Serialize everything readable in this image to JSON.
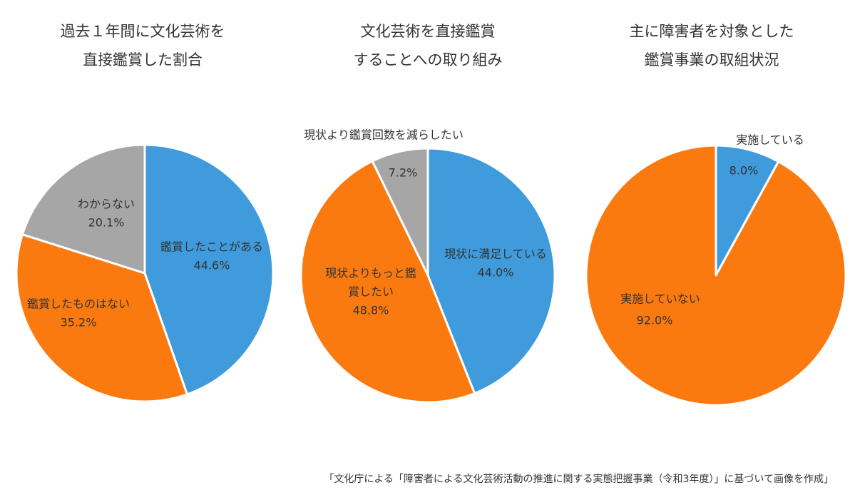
{
  "colors": {
    "blue": "#3f9bdb",
    "orange": "#fb7a10",
    "gray": "#a6a6a6",
    "outline": "#ffffff",
    "label": "#333333"
  },
  "chart_data": [
    {
      "type": "pie",
      "title_lines": [
        "過去１年間に文化芸術を",
        "直接鑑賞した割合"
      ],
      "slices": [
        {
          "label": "鑑賞したことがある",
          "value": 44.6,
          "value_label": "44.6%",
          "color": "#3f9bdb"
        },
        {
          "label": "鑑賞したものはない",
          "value": 35.2,
          "value_label": "35.2%",
          "color": "#fb7a10"
        },
        {
          "label": "わからない",
          "value": 20.1,
          "value_label": "20.1%",
          "color": "#a6a6a6"
        }
      ]
    },
    {
      "type": "pie",
      "title_lines": [
        "文化芸術を直接鑑賞",
        "することへの取り組み"
      ],
      "slices": [
        {
          "label": "現状に満足している",
          "value": 44.0,
          "value_label": "44.0%",
          "color": "#3f9bdb"
        },
        {
          "label": "現状よりもっと鑑賞したい",
          "value": 48.8,
          "value_label": "48.8%",
          "color": "#fb7a10"
        },
        {
          "label": "現状より鑑賞回数を減らしたい",
          "value": 7.2,
          "value_label": "7.2%",
          "color": "#a6a6a6"
        }
      ]
    },
    {
      "type": "pie",
      "title_lines": [
        "主に障害者を対象とした",
        "鑑賞事業の取組状況"
      ],
      "slices": [
        {
          "label": "実施している",
          "value": 8.0,
          "value_label": "8.0%",
          "color": "#3f9bdb"
        },
        {
          "label": "実施していない",
          "value": 92.0,
          "value_label": "92.0%",
          "color": "#fb7a10"
        }
      ]
    }
  ],
  "source_note": "「文化庁による「障害者による文化芸術活動の推進に関する実態把握事業（令和3年度）」に基づいて画像を作成」"
}
